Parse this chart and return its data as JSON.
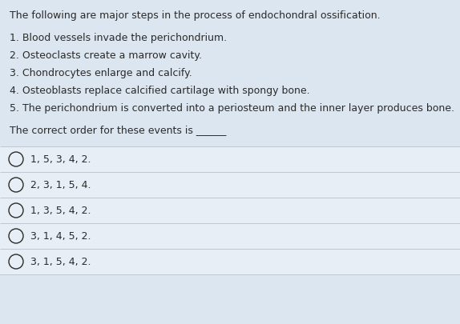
{
  "bg_color": "#dce6f0",
  "text_color": "#2a2a2a",
  "title": "The following are major steps in the process of endochondral ossification.",
  "steps": [
    "1. Blood vessels invade the perichondrium.",
    "2. Osteoclasts create a marrow cavity.",
    "3. Chondrocytes enlarge and calcify.",
    "4. Osteoblasts replace calcified cartilage with spongy bone.",
    "5. The perichondrium is converted into a periosteum and the inner layer produces bone."
  ],
  "question": "The correct order for these events is ______",
  "options": [
    "1, 5, 3, 4, 2.",
    "2, 3, 1, 5, 4.",
    "1, 3, 5, 4, 2.",
    "3, 1, 4, 5, 2.",
    "3, 1, 5, 4, 2."
  ],
  "title_fontsize": 9.0,
  "steps_fontsize": 9.0,
  "question_fontsize": 9.0,
  "options_fontsize": 9.0,
  "option_area_bg": "#e8eef5",
  "divider_color": "#b8c8d8"
}
